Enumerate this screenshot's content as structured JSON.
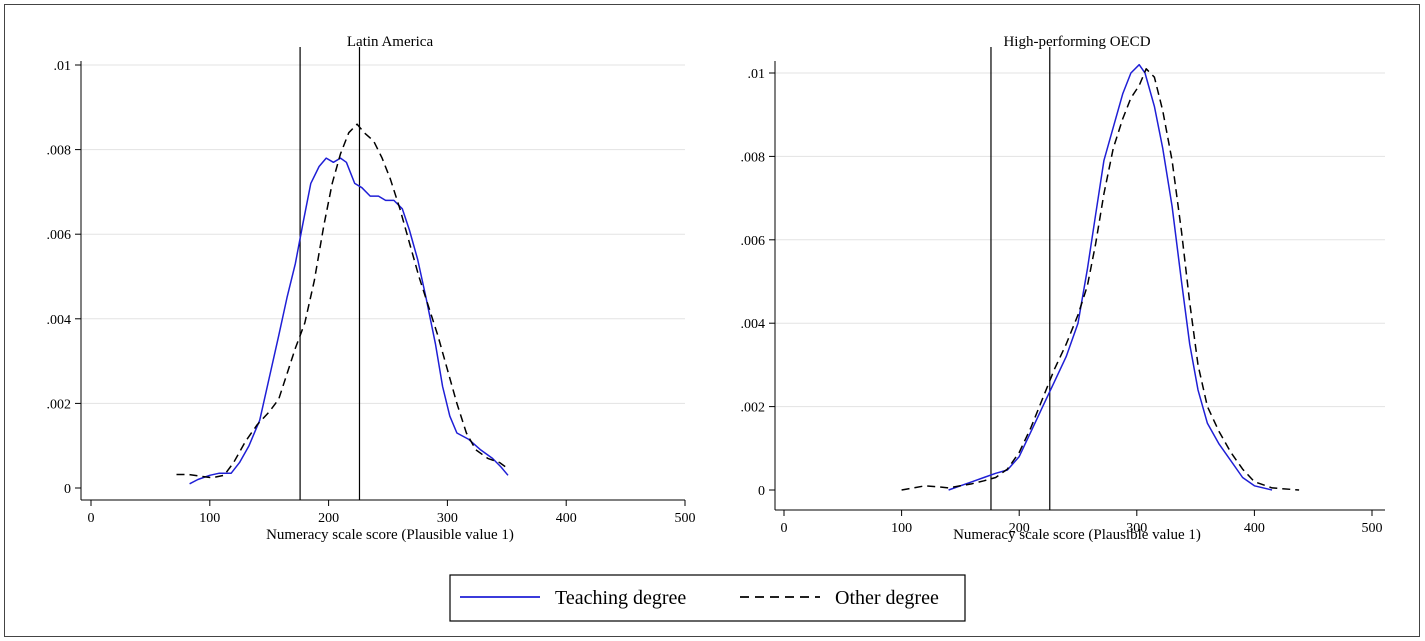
{
  "chart_data": [
    {
      "type": "line",
      "title": "Latin America",
      "xlabel": "Numeracy scale score (Plausible value 1)",
      "ylabel": "",
      "xlim": [
        0,
        500
      ],
      "ylim": [
        0,
        0.01
      ],
      "xticks": [
        0,
        100,
        200,
        300,
        400,
        500
      ],
      "xtick_labels": [
        "0",
        "100",
        "200",
        "300",
        "400",
        "500"
      ],
      "yticks": [
        0,
        0.002,
        0.004,
        0.006,
        0.008,
        0.01
      ],
      "ytick_labels": [
        "0",
        ".002",
        ".004",
        ".006",
        ".008",
        ".01"
      ],
      "grid": true,
      "vlines": [
        176,
        226
      ],
      "series": [
        {
          "name": "Teaching degree",
          "color": "#1f1fd6",
          "dash": "solid",
          "points": [
            [
              83,
              0.0001
            ],
            [
              90,
              0.0002
            ],
            [
              100,
              0.0003
            ],
            [
              108,
              0.00035
            ],
            [
              118,
              0.00035
            ],
            [
              125,
              0.0006
            ],
            [
              133,
              0.001
            ],
            [
              142,
              0.0016
            ],
            [
              150,
              0.0026
            ],
            [
              158,
              0.0036
            ],
            [
              165,
              0.0045
            ],
            [
              172,
              0.0053
            ],
            [
              178,
              0.0062
            ],
            [
              185,
              0.0072
            ],
            [
              192,
              0.0076
            ],
            [
              198,
              0.0078
            ],
            [
              204,
              0.0077
            ],
            [
              210,
              0.0078
            ],
            [
              215,
              0.0077
            ],
            [
              222,
              0.0072
            ],
            [
              228,
              0.0071
            ],
            [
              235,
              0.0069
            ],
            [
              242,
              0.0069
            ],
            [
              248,
              0.0068
            ],
            [
              255,
              0.0068
            ],
            [
              262,
              0.0066
            ],
            [
              268,
              0.0061
            ],
            [
              275,
              0.0054
            ],
            [
              282,
              0.0045
            ],
            [
              290,
              0.0034
            ],
            [
              296,
              0.0024
            ],
            [
              302,
              0.0017
            ],
            [
              308,
              0.0013
            ],
            [
              318,
              0.00115
            ],
            [
              328,
              0.0009
            ],
            [
              338,
              0.0007
            ],
            [
              345,
              0.0005
            ],
            [
              351,
              0.0003
            ]
          ]
        },
        {
          "name": "Other degree",
          "color": "#000000",
          "dash": "dashed",
          "points": [
            [
              72,
              0.00032
            ],
            [
              82,
              0.00032
            ],
            [
              92,
              0.00028
            ],
            [
              102,
              0.00024
            ],
            [
              112,
              0.0003
            ],
            [
              120,
              0.0006
            ],
            [
              130,
              0.0011
            ],
            [
              140,
              0.0015
            ],
            [
              150,
              0.0018
            ],
            [
              158,
              0.0021
            ],
            [
              165,
              0.0027
            ],
            [
              172,
              0.0033
            ],
            [
              180,
              0.0039
            ],
            [
              188,
              0.0049
            ],
            [
              196,
              0.0062
            ],
            [
              203,
              0.0072
            ],
            [
              210,
              0.0079
            ],
            [
              217,
              0.0084
            ],
            [
              224,
              0.0086
            ],
            [
              230,
              0.0084
            ],
            [
              238,
              0.0082
            ],
            [
              245,
              0.0078
            ],
            [
              252,
              0.0073
            ],
            [
              260,
              0.0066
            ],
            [
              268,
              0.0058
            ],
            [
              276,
              0.005
            ],
            [
              284,
              0.0043
            ],
            [
              292,
              0.0036
            ],
            [
              300,
              0.0028
            ],
            [
              308,
              0.002
            ],
            [
              316,
              0.0013
            ],
            [
              324,
              0.0009
            ],
            [
              334,
              0.0007
            ],
            [
              344,
              0.0006
            ],
            [
              349,
              0.0005
            ]
          ]
        }
      ]
    },
    {
      "type": "line",
      "title": "High-performing OECD",
      "xlabel": "Numeracy scale score (Plausible value 1)",
      "ylabel": "",
      "xlim": [
        0,
        500
      ],
      "ylim": [
        0,
        0.01
      ],
      "xticks": [
        0,
        100,
        200,
        300,
        400,
        500
      ],
      "xtick_labels": [
        "0",
        "100",
        "200",
        "300",
        "400",
        "500"
      ],
      "yticks": [
        0,
        0.002,
        0.004,
        0.006,
        0.008,
        0.01
      ],
      "ytick_labels": [
        "0",
        ".002",
        ".004",
        ".006",
        ".008",
        ".01"
      ],
      "grid": true,
      "vlines": [
        176,
        226
      ],
      "series": [
        {
          "name": "Teaching degree",
          "color": "#1f1fd6",
          "dash": "solid",
          "points": [
            [
              140,
              0.0
            ],
            [
              150,
              0.0001
            ],
            [
              160,
              0.0002
            ],
            [
              170,
              0.0003
            ],
            [
              180,
              0.0004
            ],
            [
              190,
              0.00048
            ],
            [
              200,
              0.0008
            ],
            [
              210,
              0.0014
            ],
            [
              220,
              0.002
            ],
            [
              230,
              0.0026
            ],
            [
              240,
              0.0032
            ],
            [
              250,
              0.004
            ],
            [
              258,
              0.0053
            ],
            [
              265,
              0.0066
            ],
            [
              272,
              0.0079
            ],
            [
              280,
              0.0087
            ],
            [
              288,
              0.0095
            ],
            [
              295,
              0.01
            ],
            [
              302,
              0.0102
            ],
            [
              307,
              0.01
            ],
            [
              315,
              0.0092
            ],
            [
              322,
              0.0082
            ],
            [
              330,
              0.0068
            ],
            [
              338,
              0.005
            ],
            [
              345,
              0.0035
            ],
            [
              352,
              0.0024
            ],
            [
              360,
              0.0016
            ],
            [
              370,
              0.0011
            ],
            [
              380,
              0.0007
            ],
            [
              390,
              0.0003
            ],
            [
              400,
              0.0001
            ],
            [
              415,
              0.0
            ]
          ]
        },
        {
          "name": "Other degree",
          "color": "#000000",
          "dash": "dashed",
          "points": [
            [
              100,
              0.0
            ],
            [
              110,
              5e-05
            ],
            [
              120,
              0.0001
            ],
            [
              130,
              8e-05
            ],
            [
              140,
              5e-05
            ],
            [
              150,
              0.0001
            ],
            [
              160,
              0.00015
            ],
            [
              170,
              0.00022
            ],
            [
              180,
              0.0003
            ],
            [
              190,
              0.0005
            ],
            [
              200,
              0.0009
            ],
            [
              210,
              0.0015
            ],
            [
              220,
              0.0022
            ],
            [
              230,
              0.0029
            ],
            [
              240,
              0.0035
            ],
            [
              250,
              0.0042
            ],
            [
              258,
              0.0049
            ],
            [
              265,
              0.0059
            ],
            [
              272,
              0.0071
            ],
            [
              280,
              0.0082
            ],
            [
              288,
              0.0089
            ],
            [
              295,
              0.0094
            ],
            [
              302,
              0.0097
            ],
            [
              308,
              0.0101
            ],
            [
              315,
              0.0099
            ],
            [
              322,
              0.0091
            ],
            [
              330,
              0.0079
            ],
            [
              338,
              0.0062
            ],
            [
              345,
              0.0045
            ],
            [
              352,
              0.003
            ],
            [
              360,
              0.002
            ],
            [
              370,
              0.0014
            ],
            [
              380,
              0.0009
            ],
            [
              390,
              0.0005
            ],
            [
              400,
              0.0002
            ],
            [
              415,
              5e-05
            ],
            [
              438,
              0.0
            ]
          ]
        }
      ]
    }
  ],
  "legend": {
    "items": [
      {
        "label": "Teaching degree",
        "color": "#1f1fd6",
        "dash": "solid"
      },
      {
        "label": "Other degree",
        "color": "#000000",
        "dash": "dashed"
      }
    ]
  }
}
